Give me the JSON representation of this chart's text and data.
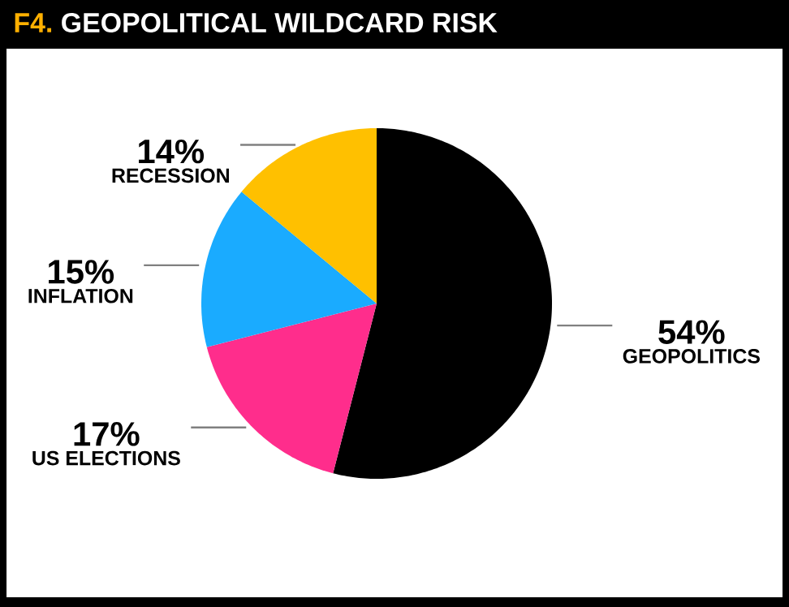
{
  "chart_data": {
    "type": "pie",
    "title": "GEOPOLITICAL WILDCARD RISK",
    "annotations": [
      "F4."
    ],
    "categories": [
      "GEOPOLITICS",
      "US ELECTIONS",
      "INFLATION",
      "RECESSION"
    ],
    "values": [
      54,
      17,
      15,
      14
    ],
    "value_labels": [
      "54%",
      "17%",
      "15%",
      "14%"
    ],
    "colors": [
      "#000000",
      "#ff2d8c",
      "#1aabff",
      "#ffc000"
    ]
  }
}
